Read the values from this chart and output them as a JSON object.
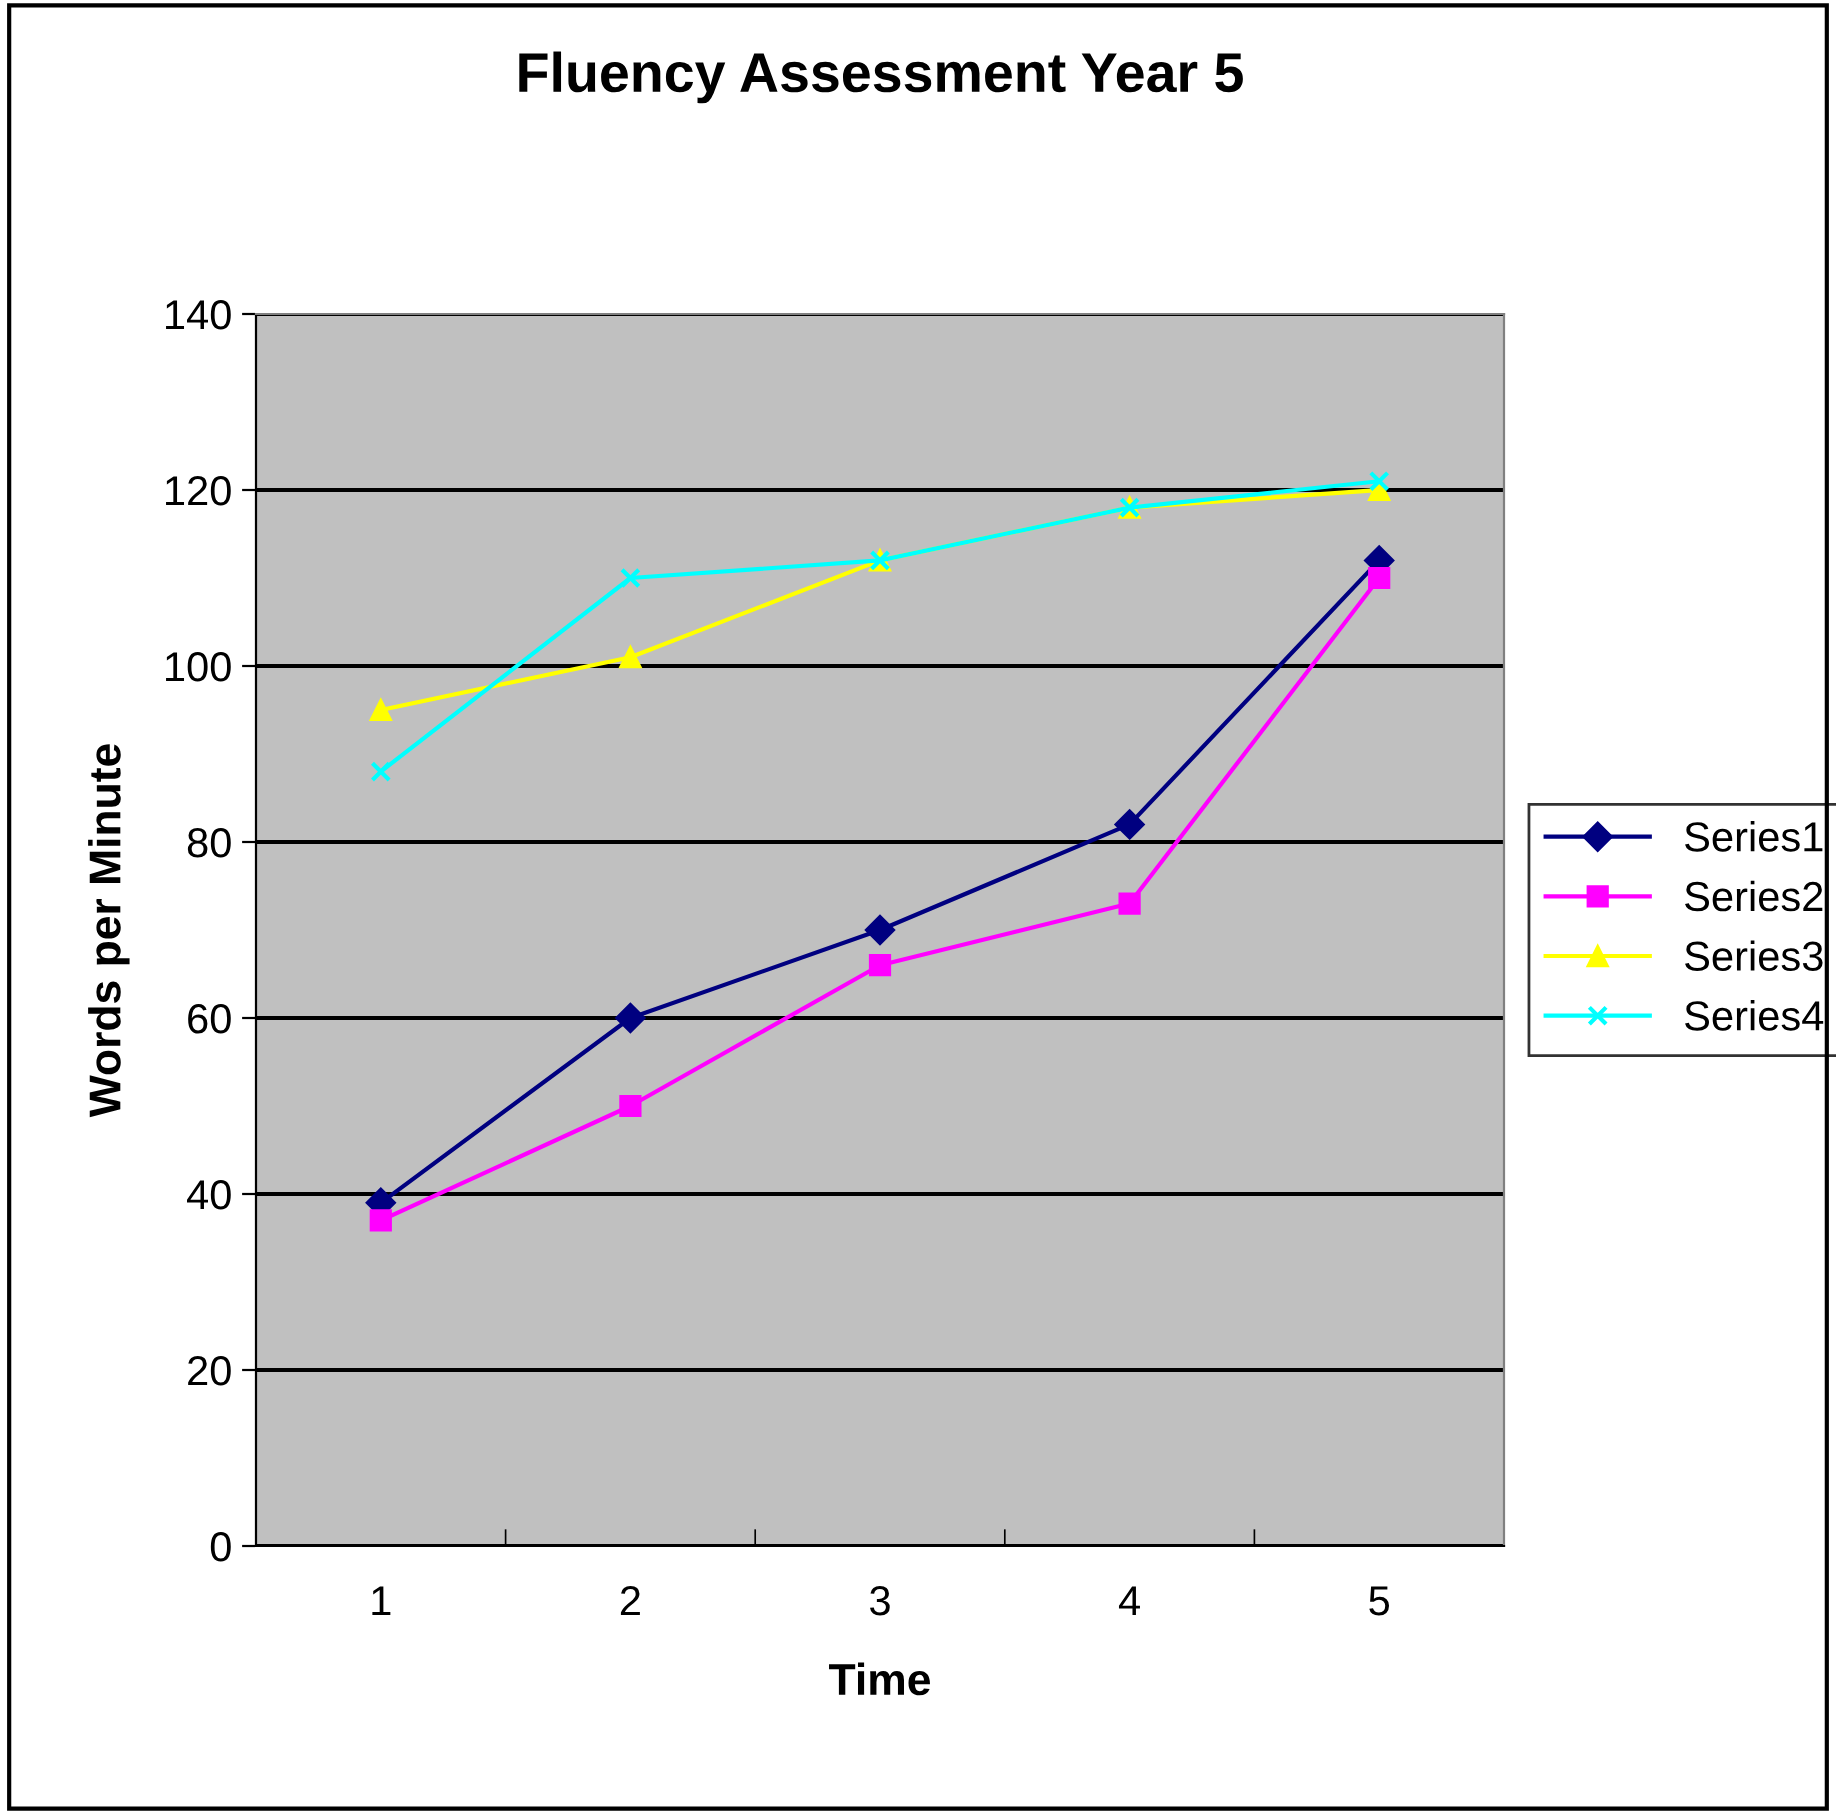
{
  "chart_data": {
    "type": "line",
    "title": "Fluency Assessment Year 5",
    "xlabel": "Time",
    "ylabel": "Words per Minute",
    "categories": [
      "1",
      "2",
      "3",
      "4",
      "5"
    ],
    "series": [
      {
        "name": "Series1",
        "color": "#000080",
        "marker": "diamond",
        "values": [
          39,
          60,
          70,
          82,
          112
        ]
      },
      {
        "name": "Series2",
        "color": "#ff00ff",
        "marker": "square",
        "values": [
          37,
          50,
          66,
          73,
          110
        ]
      },
      {
        "name": "Series3",
        "color": "#ffff00",
        "marker": "triangle",
        "values": [
          95,
          101,
          112,
          118,
          120
        ]
      },
      {
        "name": "Series4",
        "color": "#00ffff",
        "marker": "cross",
        "values": [
          88,
          110,
          112,
          118,
          121
        ]
      }
    ],
    "ylim": [
      0,
      140
    ],
    "yticks": [
      0,
      20,
      40,
      60,
      80,
      100,
      120,
      140
    ],
    "grid": "y",
    "legend": "right"
  }
}
